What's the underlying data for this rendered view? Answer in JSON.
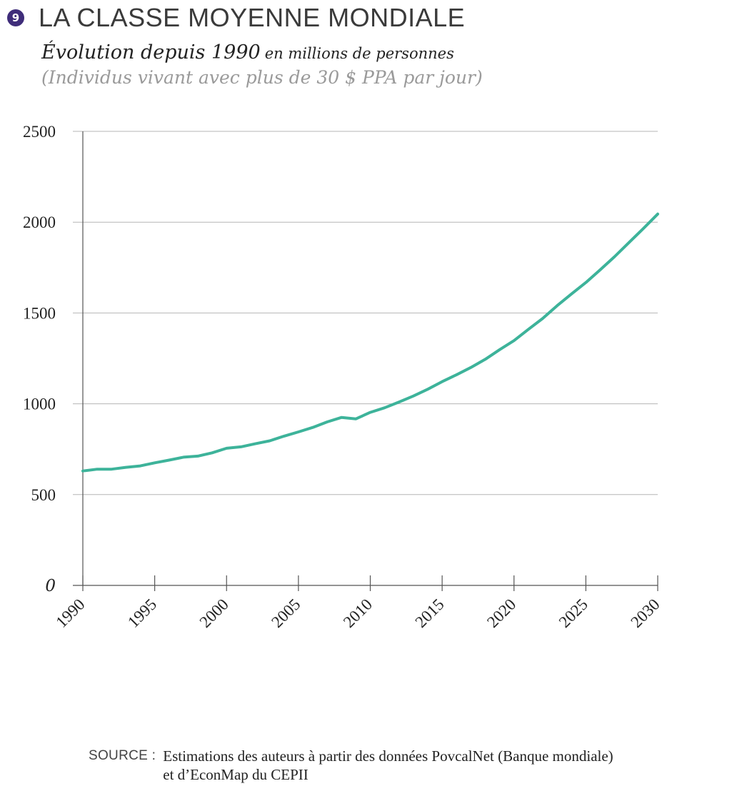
{
  "header": {
    "badge": "9",
    "title": "LA CLASSE MOYENNE MONDIALE",
    "subtitle_main": "Évolution depuis 1990",
    "subtitle_unit": "en millions de personnes",
    "subtitle_note": "(Individus vivant avec plus de 30 $ PPA par jour)"
  },
  "colors": {
    "line": "#3db39a",
    "grid": "#b5b5b5",
    "badge": "#3f2d7a"
  },
  "chart_data": {
    "type": "line",
    "title": "Évolution depuis 1990",
    "xlabel": "",
    "ylabel": "en millions de personnes",
    "xlim": [
      1990,
      2030
    ],
    "ylim": [
      0,
      2500
    ],
    "grid": true,
    "xticks": [
      "1990",
      "1995",
      "2000",
      "2005",
      "2010",
      "2015",
      "2020",
      "2025",
      "2030"
    ],
    "yticks": [
      "0",
      "500",
      "1000",
      "1500",
      "2000",
      "2500"
    ],
    "series": [
      {
        "name": "Classe moyenne mondiale",
        "x": [
          1990,
          1991,
          1992,
          1993,
          1994,
          1995,
          1996,
          1997,
          1998,
          1999,
          2000,
          2001,
          2002,
          2003,
          2004,
          2005,
          2006,
          2007,
          2008,
          2009,
          2010,
          2011,
          2012,
          2013,
          2014,
          2015,
          2016,
          2017,
          2018,
          2019,
          2020,
          2021,
          2022,
          2023,
          2024,
          2025,
          2026,
          2027,
          2028,
          2029,
          2030
        ],
        "values": [
          630,
          640,
          640,
          650,
          658,
          675,
          690,
          706,
          712,
          730,
          755,
          763,
          780,
          796,
          822,
          845,
          870,
          900,
          925,
          917,
          953,
          978,
          1010,
          1043,
          1080,
          1122,
          1160,
          1200,
          1245,
          1298,
          1348,
          1410,
          1470,
          1540,
          1605,
          1668,
          1738,
          1810,
          1888,
          1965,
          2045
        ]
      }
    ]
  },
  "source": {
    "label": "SOURCE :",
    "line1": "Estimations des auteurs à partir des données PovcalNet (Banque mondiale)",
    "line2": "et d’EconMap du CEPII"
  }
}
